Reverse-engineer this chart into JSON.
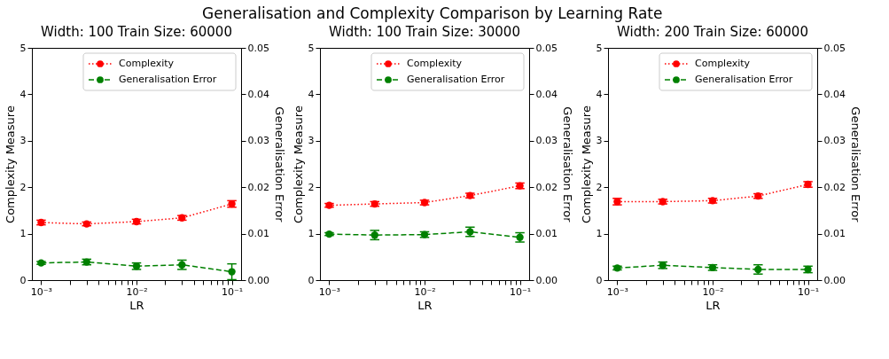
{
  "chart_data": [
    {
      "type": "line",
      "title": "Width: 100  Train Size: 60000",
      "annotations": [
        "Generalisation and Complexity Comparison by Learning Rate"
      ],
      "xlabel": "LR",
      "ylabel": "Complexity Measure",
      "y2label": "Generalisation Error",
      "log": "x",
      "x": [
        0.001,
        0.003,
        0.01,
        0.03,
        0.1
      ],
      "xlim": [
        0.0008,
        0.125
      ],
      "xticks": [
        {
          "value": 0.001,
          "label": "10⁻³"
        },
        {
          "value": 0.002,
          "label": null
        },
        {
          "value": 0.003,
          "label": null
        },
        {
          "value": 0.004,
          "label": null
        },
        {
          "value": 0.005,
          "label": null
        },
        {
          "value": 0.006,
          "label": null
        },
        {
          "value": 0.007,
          "label": null
        },
        {
          "value": 0.008,
          "label": null
        },
        {
          "value": 0.009,
          "label": null
        },
        {
          "value": 0.01,
          "label": "10⁻²"
        },
        {
          "value": 0.02,
          "label": null
        },
        {
          "value": 0.03,
          "label": null
        },
        {
          "value": 0.04,
          "label": null
        },
        {
          "value": 0.05,
          "label": null
        },
        {
          "value": 0.06,
          "label": null
        },
        {
          "value": 0.07,
          "label": null
        },
        {
          "value": 0.08,
          "label": null
        },
        {
          "value": 0.09,
          "label": null
        },
        {
          "value": 0.1,
          "label": "10⁻¹"
        }
      ],
      "ylim": [
        0,
        5
      ],
      "yticks": [
        0,
        1,
        2,
        3,
        4,
        5
      ],
      "y2lim": [
        0,
        0.05
      ],
      "y2ticks": [
        {
          "value": 0,
          "label": "0.00"
        },
        {
          "value": 0.01,
          "label": "0.01"
        },
        {
          "value": 0.02,
          "label": "0.02"
        },
        {
          "value": 0.03,
          "label": "0.03"
        },
        {
          "value": 0.04,
          "label": "0.04"
        },
        {
          "value": 0.05,
          "label": "0.05"
        }
      ],
      "grid": false,
      "legend": "top right",
      "marker": "circle",
      "series": [
        {
          "name": "Complexity",
          "color": "#ff0000",
          "line_style": "dotted",
          "values": [
            1.24,
            1.21,
            1.26,
            1.34,
            1.64
          ],
          "errors": [
            0.05,
            0.04,
            0.05,
            0.05,
            0.07
          ]
        },
        {
          "name": "Generalisation Error",
          "color": "#008000",
          "line_style": "dashed",
          "axis": "y2",
          "values": [
            0.0037,
            0.0039,
            0.003,
            0.0033,
            0.0018
          ],
          "errors": [
            0.0003,
            0.0006,
            0.0007,
            0.001,
            0.0017
          ]
        }
      ]
    },
    {
      "type": "line",
      "title": "Width: 100  Train Size: 30000",
      "xlabel": "LR",
      "ylabel": "Complexity Measure",
      "y2label": "Generalisation Error",
      "log": "x",
      "x": [
        0.001,
        0.003,
        0.01,
        0.03,
        0.1
      ],
      "xlim": [
        0.0008,
        0.125
      ],
      "xticks": [
        {
          "value": 0.001,
          "label": "10⁻³"
        },
        {
          "value": 0.002,
          "label": null
        },
        {
          "value": 0.003,
          "label": null
        },
        {
          "value": 0.004,
          "label": null
        },
        {
          "value": 0.005,
          "label": null
        },
        {
          "value": 0.006,
          "label": null
        },
        {
          "value": 0.007,
          "label": null
        },
        {
          "value": 0.008,
          "label": null
        },
        {
          "value": 0.009,
          "label": null
        },
        {
          "value": 0.01,
          "label": "10⁻²"
        },
        {
          "value": 0.02,
          "label": null
        },
        {
          "value": 0.03,
          "label": null
        },
        {
          "value": 0.04,
          "label": null
        },
        {
          "value": 0.05,
          "label": null
        },
        {
          "value": 0.06,
          "label": null
        },
        {
          "value": 0.07,
          "label": null
        },
        {
          "value": 0.08,
          "label": null
        },
        {
          "value": 0.09,
          "label": null
        },
        {
          "value": 0.1,
          "label": "10⁻¹"
        }
      ],
      "ylim": [
        0,
        5
      ],
      "yticks": [
        0,
        1,
        2,
        3,
        4,
        5
      ],
      "y2lim": [
        0,
        0.05
      ],
      "y2ticks": [
        {
          "value": 0,
          "label": "0.00"
        },
        {
          "value": 0.01,
          "label": "0.01"
        },
        {
          "value": 0.02,
          "label": "0.02"
        },
        {
          "value": 0.03,
          "label": "0.03"
        },
        {
          "value": 0.04,
          "label": "0.04"
        },
        {
          "value": 0.05,
          "label": "0.05"
        }
      ],
      "grid": false,
      "legend": "top right",
      "marker": "circle",
      "series": [
        {
          "name": "Complexity",
          "color": "#ff0000",
          "line_style": "dotted",
          "values": [
            1.61,
            1.64,
            1.67,
            1.82,
            2.03
          ],
          "errors": [
            0.04,
            0.05,
            0.05,
            0.05,
            0.06
          ]
        },
        {
          "name": "Generalisation Error",
          "color": "#008000",
          "line_style": "dashed",
          "axis": "y2",
          "values": [
            0.0099,
            0.0097,
            0.0098,
            0.0104,
            0.0092
          ],
          "errors": [
            0.0003,
            0.001,
            0.0006,
            0.001,
            0.001
          ]
        }
      ]
    },
    {
      "type": "line",
      "title": "Width: 200  Train Size: 60000",
      "xlabel": "LR",
      "ylabel": "Complexity Measure",
      "y2label": "Generalisation Error",
      "log": "x",
      "x": [
        0.001,
        0.003,
        0.01,
        0.03,
        0.1
      ],
      "xlim": [
        0.0008,
        0.125
      ],
      "xticks": [
        {
          "value": 0.001,
          "label": "10⁻³"
        },
        {
          "value": 0.002,
          "label": null
        },
        {
          "value": 0.003,
          "label": null
        },
        {
          "value": 0.004,
          "label": null
        },
        {
          "value": 0.005,
          "label": null
        },
        {
          "value": 0.006,
          "label": null
        },
        {
          "value": 0.007,
          "label": null
        },
        {
          "value": 0.008,
          "label": null
        },
        {
          "value": 0.009,
          "label": null
        },
        {
          "value": 0.01,
          "label": "10⁻²"
        },
        {
          "value": 0.02,
          "label": null
        },
        {
          "value": 0.03,
          "label": null
        },
        {
          "value": 0.04,
          "label": null
        },
        {
          "value": 0.05,
          "label": null
        },
        {
          "value": 0.06,
          "label": null
        },
        {
          "value": 0.07,
          "label": null
        },
        {
          "value": 0.08,
          "label": null
        },
        {
          "value": 0.09,
          "label": null
        },
        {
          "value": 0.1,
          "label": "10⁻¹"
        }
      ],
      "ylim": [
        0,
        5
      ],
      "yticks": [
        0,
        1,
        2,
        3,
        4,
        5
      ],
      "y2lim": [
        0,
        0.05
      ],
      "y2ticks": [
        {
          "value": 0,
          "label": "0.00"
        },
        {
          "value": 0.01,
          "label": "0.01"
        },
        {
          "value": 0.02,
          "label": "0.02"
        },
        {
          "value": 0.03,
          "label": "0.03"
        },
        {
          "value": 0.04,
          "label": "0.04"
        },
        {
          "value": 0.05,
          "label": "0.05"
        }
      ],
      "grid": false,
      "legend": "top right",
      "marker": "circle",
      "series": [
        {
          "name": "Complexity",
          "color": "#ff0000",
          "line_style": "dotted",
          "values": [
            1.69,
            1.69,
            1.71,
            1.81,
            2.06
          ],
          "errors": [
            0.07,
            0.05,
            0.05,
            0.05,
            0.06
          ]
        },
        {
          "name": "Generalisation Error",
          "color": "#008000",
          "line_style": "dashed",
          "axis": "y2",
          "values": [
            0.0026,
            0.0032,
            0.0027,
            0.0023,
            0.0023
          ],
          "errors": [
            0.0004,
            0.0007,
            0.0006,
            0.001,
            0.0007
          ]
        }
      ]
    }
  ]
}
